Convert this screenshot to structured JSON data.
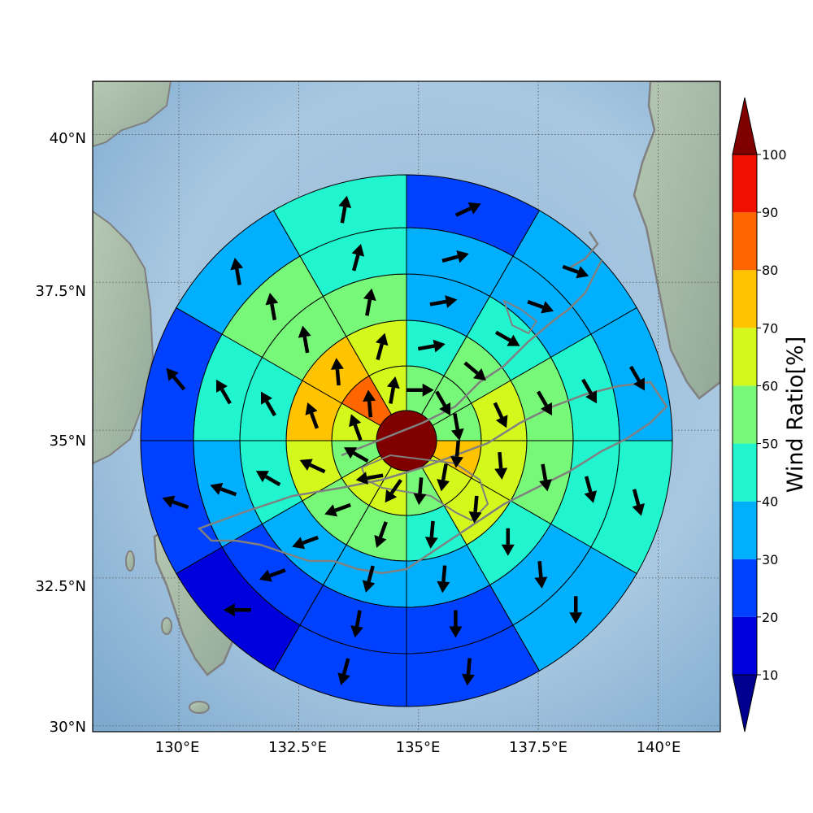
{
  "map": {
    "lon_range": [
      128.2,
      141.3
    ],
    "lat_range": [
      29.9,
      40.9
    ],
    "center": {
      "lon": 134.9,
      "lat": 35.3
    },
    "lon_ticks": [
      "130°E",
      "132.5°E",
      "135°E",
      "137.5°E",
      "140°E"
    ],
    "lat_ticks": [
      "40°N",
      "37.5°N",
      "35°N",
      "32.5°N",
      "30°N"
    ],
    "gridlines": "dotted",
    "coastline_color": "#7f7f7f",
    "sea_color": "#8fb6d9",
    "land_color": "#a9bfae"
  },
  "colorbar": {
    "label": "Wind Ratio[%]",
    "ticks": [
      "10",
      "20",
      "30",
      "40",
      "50",
      "60",
      "70",
      "80",
      "90",
      "100"
    ],
    "under_color": "#00008f",
    "over_color": "#800000",
    "colors": [
      "#0000dd",
      "#0040ff",
      "#00b0ff",
      "#20f5d0",
      "#78f878",
      "#d4f81c",
      "#ffc300",
      "#ff6600",
      "#f01000"
    ]
  },
  "chart_data": {
    "type": "polar-sector-map",
    "description_quantity": "Wind Ratio[%]",
    "center_cell": {
      "value": 100,
      "dir": 0
    },
    "rings": [
      {
        "ring": 1,
        "values": [
          50,
          50,
          50,
          70,
          60,
          50,
          60,
          60,
          50,
          60,
          80,
          60
        ],
        "dirs": [
          90,
          150,
          170,
          185,
          190,
          185,
          215,
          260,
          300,
          340,
          355,
          10
        ]
      },
      {
        "ring": 2,
        "values": [
          40,
          50,
          60,
          60,
          60,
          40,
          50,
          50,
          60,
          70,
          70,
          60
        ],
        "dirs": [
          80,
          130,
          155,
          175,
          185,
          185,
          200,
          250,
          295,
          340,
          355,
          15
        ]
      },
      {
        "ring": 3,
        "values": [
          30,
          40,
          50,
          50,
          40,
          30,
          30,
          30,
          40,
          40,
          50,
          50
        ],
        "dirs": [
          80,
          120,
          150,
          170,
          180,
          185,
          195,
          250,
          300,
          330,
          350,
          10
        ]
      },
      {
        "ring": 4,
        "values": [
          30,
          30,
          40,
          40,
          30,
          20,
          20,
          20,
          30,
          40,
          50,
          40
        ],
        "dirs": [
          75,
          110,
          150,
          165,
          175,
          180,
          190,
          250,
          290,
          330,
          350,
          15
        ]
      },
      {
        "ring": 5,
        "values": [
          20,
          30,
          30,
          40,
          30,
          20,
          20,
          10,
          20,
          20,
          30,
          40
        ],
        "dirs": [
          65,
          110,
          150,
          165,
          180,
          185,
          195,
          270,
          290,
          320,
          350,
          10
        ]
      },
      {
        "ring": 6,
        "values": [
          20,
          30,
          30,
          40,
          20,
          20,
          10,
          10,
          10,
          30,
          40,
          40
        ],
        "dirs": [
          60,
          105,
          150,
          165,
          180,
          180,
          195,
          260,
          295,
          330,
          345,
          15
        ]
      }
    ],
    "sector_order": "12 sectors of 30°, clockwise from north (0°-30°, 30°-60°, ...)",
    "arrow_dir_convention": "compass bearing the arrow points to"
  }
}
